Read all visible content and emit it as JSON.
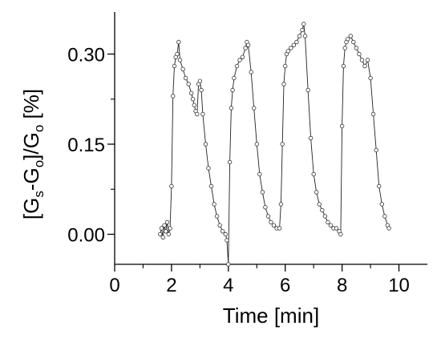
{
  "chart_data": {
    "type": "scatter",
    "title": "",
    "xlabel": "Time [min]",
    "ylabel": {
      "parts": [
        {
          "text": "[G",
          "sub": false
        },
        {
          "text": "s",
          "sub": true
        },
        {
          "text": "-G",
          "sub": false
        },
        {
          "text": "o",
          "sub": true
        },
        {
          "text": "]/G",
          "sub": false
        },
        {
          "text": "o",
          "sub": true
        },
        {
          "text": " [%]",
          "sub": false
        }
      ]
    },
    "xlim": [
      0,
      11
    ],
    "ylim": [
      -0.05,
      0.37
    ],
    "x_ticks": [
      0,
      2,
      4,
      6,
      8,
      10
    ],
    "x_tick_labels": [
      "0",
      "2",
      "4",
      "6",
      "8",
      "10"
    ],
    "y_ticks": [
      0.0,
      0.15,
      0.3
    ],
    "y_tick_labels": [
      "0.00",
      "0.15",
      "0.30"
    ],
    "grid": false,
    "legend": "none",
    "marker": "open-circle",
    "connect_points": true,
    "series": [
      {
        "x": [
          1.6,
          1.65,
          1.7,
          1.75,
          1.8,
          1.85,
          1.9,
          1.95,
          2.0,
          2.05,
          2.1,
          2.15,
          2.2,
          2.25,
          2.3,
          2.4,
          2.5,
          2.6,
          2.7,
          2.75,
          2.8,
          2.85,
          2.9,
          2.95,
          3.0,
          3.05,
          3.1,
          3.2,
          3.3,
          3.4,
          3.5,
          3.6,
          3.7,
          3.8,
          3.9,
          3.95,
          4.0,
          4.05,
          4.1,
          4.15,
          4.2,
          4.3,
          4.4,
          4.5,
          4.6,
          4.65,
          4.7,
          4.8,
          4.9,
          5.0,
          5.1,
          5.2,
          5.3,
          5.4,
          5.5,
          5.6,
          5.7,
          5.8,
          5.85,
          5.9,
          5.95,
          6.0,
          6.05,
          6.1,
          6.2,
          6.3,
          6.4,
          6.5,
          6.6,
          6.65,
          6.7,
          6.8,
          6.9,
          7.0,
          7.1,
          7.2,
          7.3,
          7.4,
          7.5,
          7.6,
          7.7,
          7.8,
          7.9,
          7.95,
          8.0,
          8.05,
          8.1,
          8.15,
          8.2,
          8.3,
          8.4,
          8.5,
          8.6,
          8.7,
          8.8,
          8.9,
          9.0,
          9.1,
          9.2,
          9.3,
          9.4,
          9.5,
          9.6,
          9.65
        ],
        "y": [
          0.0,
          0.01,
          -0.005,
          0.015,
          0.005,
          0.02,
          0.0,
          0.01,
          0.08,
          0.23,
          0.28,
          0.295,
          0.3,
          0.32,
          0.29,
          0.275,
          0.26,
          0.25,
          0.235,
          0.225,
          0.215,
          0.205,
          0.2,
          0.25,
          0.255,
          0.24,
          0.2,
          0.15,
          0.11,
          0.08,
          0.05,
          0.03,
          0.015,
          0.005,
          0.0,
          -0.01,
          -0.05,
          0.12,
          0.21,
          0.24,
          0.26,
          0.28,
          0.29,
          0.295,
          0.31,
          0.32,
          0.315,
          0.27,
          0.21,
          0.15,
          0.1,
          0.07,
          0.045,
          0.03,
          0.02,
          0.015,
          0.01,
          0.01,
          0.05,
          0.15,
          0.25,
          0.28,
          0.3,
          0.305,
          0.31,
          0.315,
          0.32,
          0.33,
          0.34,
          0.35,
          0.33,
          0.24,
          0.16,
          0.1,
          0.07,
          0.05,
          0.04,
          0.03,
          0.02,
          0.015,
          0.01,
          0.01,
          0.005,
          0.0,
          0.18,
          0.28,
          0.31,
          0.32,
          0.325,
          0.33,
          0.32,
          0.31,
          0.3,
          0.29,
          0.28,
          0.29,
          0.26,
          0.2,
          0.14,
          0.08,
          0.05,
          0.03,
          0.015,
          0.01
        ]
      }
    ]
  }
}
